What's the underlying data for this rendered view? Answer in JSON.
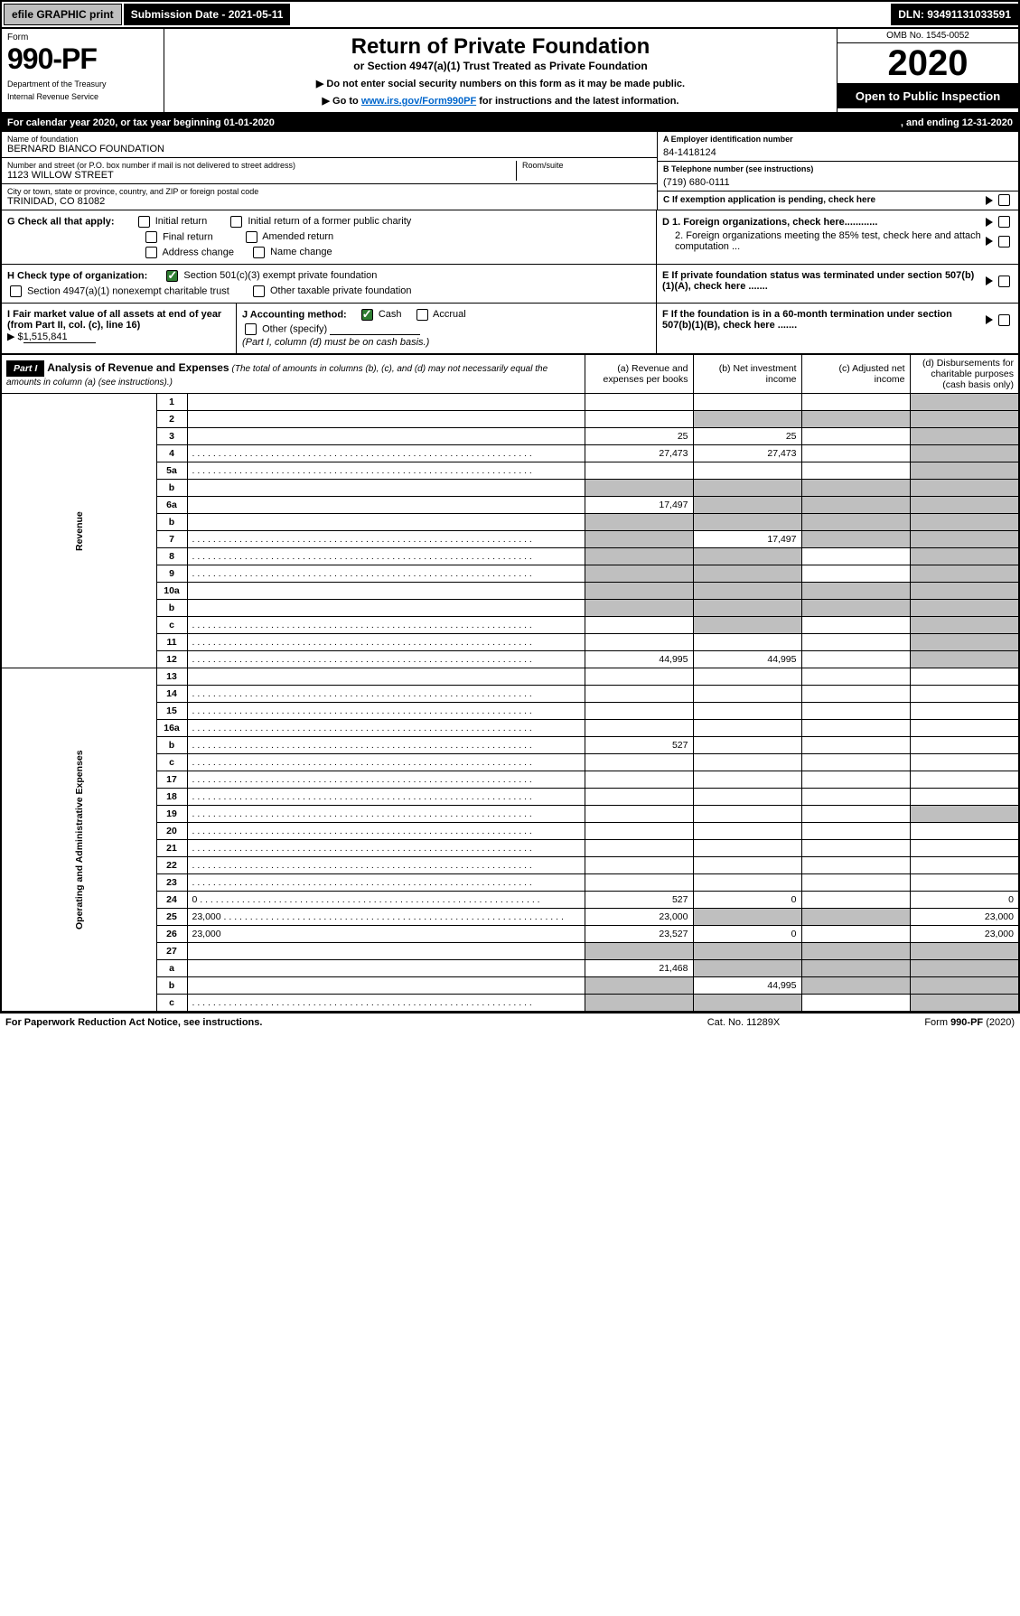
{
  "topbar": {
    "efile_btn": "efile GRAPHIC print",
    "submission_label": "Submission Date - 2021-05-11",
    "dln_label": "DLN: 93491131033591"
  },
  "header": {
    "form_word": "Form",
    "form_number": "990-PF",
    "dept1": "Department of the Treasury",
    "dept2": "Internal Revenue Service",
    "title": "Return of Private Foundation",
    "subtitle": "or Section 4947(a)(1) Trust Treated as Private Foundation",
    "instr1": "▶ Do not enter social security numbers on this form as it may be made public.",
    "instr2_pre": "▶ Go to ",
    "instr2_link": "www.irs.gov/Form990PF",
    "instr2_post": " for instructions and the latest information.",
    "omb": "OMB No. 1545-0052",
    "year": "2020",
    "open": "Open to Public Inspection"
  },
  "cal_year": {
    "text": "For calendar year 2020, or tax year beginning 01-01-2020",
    "ending": ", and ending 12-31-2020"
  },
  "entity": {
    "name_lbl": "Name of foundation",
    "name_val": "BERNARD BIANCO FOUNDATION",
    "addr_lbl": "Number and street (or P.O. box number if mail is not delivered to street address)",
    "addr_val": "1123 WILLOW STREET",
    "room_lbl": "Room/suite",
    "city_lbl": "City or town, state or province, country, and ZIP or foreign postal code",
    "city_val": "TRINIDAD, CO  81082",
    "ein_lbl": "A Employer identification number",
    "ein_val": "84-1418124",
    "phone_lbl": "B Telephone number (see instructions)",
    "phone_val": "(719) 680-0111",
    "c_lbl": "C If exemption application is pending, check here"
  },
  "section_g": {
    "lbl": "G Check all that apply:",
    "opts": [
      "Initial return",
      "Initial return of a former public charity",
      "Final return",
      "Amended return",
      "Address change",
      "Name change"
    ]
  },
  "section_h": {
    "lbl": "H Check type of organization:",
    "opt1": "Section 501(c)(3) exempt private foundation",
    "opt2": "Section 4947(a)(1) nonexempt charitable trust",
    "opt3": "Other taxable private foundation"
  },
  "section_i": {
    "lbl": "I Fair market value of all assets at end of year (from Part II, col. (c), line 16)",
    "amt_pre": "▶ $",
    "amt": "1,515,841"
  },
  "section_j": {
    "lbl": "J Accounting method:",
    "cash": "Cash",
    "accrual": "Accrual",
    "other": "Other (specify)",
    "note": "(Part I, column (d) must be on cash basis.)"
  },
  "section_d": {
    "d1": "D 1. Foreign organizations, check here............",
    "d2": "2. Foreign organizations meeting the 85% test, check here and attach computation ...",
    "e": "E If private foundation status was terminated under section 507(b)(1)(A), check here .......",
    "f": "F If the foundation is in a 60-month termination under section 507(b)(1)(B), check here ......."
  },
  "part1": {
    "hdr": "Part I",
    "title": "Analysis of Revenue and Expenses",
    "note": "(The total of amounts in columns (b), (c), and (d) may not necessarily equal the amounts in column (a) (see instructions).)",
    "col_a": "(a)   Revenue and expenses per books",
    "col_b": "(b)  Net investment income",
    "col_c": "(c)  Adjusted net income",
    "col_d": "(d)  Disbursements for charitable purposes (cash basis only)"
  },
  "side_rev": "Revenue",
  "side_exp": "Operating and Administrative Expenses",
  "rows": [
    {
      "n": "1",
      "d": "",
      "a": "",
      "b": "",
      "c": "",
      "ds": true,
      "dd": true
    },
    {
      "n": "2",
      "d": "",
      "a": "",
      "b": "",
      "c": "",
      "bs": true,
      "cs": true,
      "ds": true,
      "html": true
    },
    {
      "n": "3",
      "d": "",
      "a": "25",
      "b": "25",
      "c": "",
      "ds": true
    },
    {
      "n": "4",
      "d": "",
      "a": "27,473",
      "b": "27,473",
      "c": "",
      "ds": true,
      "dot": true
    },
    {
      "n": "5a",
      "d": "",
      "a": "",
      "b": "",
      "c": "",
      "ds": true,
      "dot": true
    },
    {
      "n": "b",
      "d": "",
      "a": "",
      "b": "",
      "c": "",
      "as": true,
      "bs": true,
      "cs": true,
      "ds": true
    },
    {
      "n": "6a",
      "d": "",
      "a": "17,497",
      "b": "",
      "c": "",
      "bs": true,
      "cs": true,
      "ds": true
    },
    {
      "n": "b",
      "d": "",
      "a": "",
      "b": "",
      "c": "",
      "as": true,
      "bs": true,
      "cs": true,
      "ds": true,
      "html": true
    },
    {
      "n": "7",
      "d": "",
      "a": "",
      "b": "17,497",
      "c": "",
      "as": true,
      "cs": true,
      "ds": true,
      "dot": true
    },
    {
      "n": "8",
      "d": "",
      "a": "",
      "b": "",
      "c": "",
      "as": true,
      "bs": true,
      "ds": true,
      "dot": true
    },
    {
      "n": "9",
      "d": "",
      "a": "",
      "b": "",
      "c": "",
      "as": true,
      "bs": true,
      "ds": true,
      "dot": true
    },
    {
      "n": "10a",
      "d": "",
      "a": "",
      "b": "",
      "c": "",
      "as": true,
      "bs": true,
      "cs": true,
      "ds": true
    },
    {
      "n": "b",
      "d": "",
      "a": "",
      "b": "",
      "c": "",
      "as": true,
      "bs": true,
      "cs": true,
      "ds": true
    },
    {
      "n": "c",
      "d": "",
      "a": "",
      "b": "",
      "c": "",
      "bs": true,
      "ds": true,
      "dot": true
    },
    {
      "n": "11",
      "d": "",
      "a": "",
      "b": "",
      "c": "",
      "ds": true,
      "dot": true
    },
    {
      "n": "12",
      "d": "",
      "a": "44,995",
      "b": "44,995",
      "c": "",
      "ds": true,
      "html": true,
      "dot": true
    },
    {
      "n": "13",
      "d": "",
      "a": "",
      "b": "",
      "c": ""
    },
    {
      "n": "14",
      "d": "",
      "a": "",
      "b": "",
      "c": "",
      "dot": true
    },
    {
      "n": "15",
      "d": "",
      "a": "",
      "b": "",
      "c": "",
      "dot": true
    },
    {
      "n": "16a",
      "d": "",
      "a": "",
      "b": "",
      "c": "",
      "dot": true
    },
    {
      "n": "b",
      "d": "",
      "a": "527",
      "b": "",
      "c": "",
      "dot": true
    },
    {
      "n": "c",
      "d": "",
      "a": "",
      "b": "",
      "c": "",
      "dot": true
    },
    {
      "n": "17",
      "d": "",
      "a": "",
      "b": "",
      "c": "",
      "dot": true
    },
    {
      "n": "18",
      "d": "",
      "a": "",
      "b": "",
      "c": "",
      "dot": true
    },
    {
      "n": "19",
      "d": "",
      "a": "",
      "b": "",
      "c": "",
      "ds": true,
      "dot": true
    },
    {
      "n": "20",
      "d": "",
      "a": "",
      "b": "",
      "c": "",
      "dot": true
    },
    {
      "n": "21",
      "d": "",
      "a": "",
      "b": "",
      "c": "",
      "dot": true
    },
    {
      "n": "22",
      "d": "",
      "a": "",
      "b": "",
      "c": "",
      "dot": true
    },
    {
      "n": "23",
      "d": "",
      "a": "",
      "b": "",
      "c": "",
      "dot": true
    },
    {
      "n": "24",
      "d": "0",
      "a": "527",
      "b": "0",
      "c": "",
      "html": true,
      "dot": true
    },
    {
      "n": "25",
      "d": "23,000",
      "a": "23,000",
      "b": "",
      "c": "",
      "bs": true,
      "cs": true,
      "dot": true
    },
    {
      "n": "26",
      "d": "23,000",
      "a": "23,527",
      "b": "0",
      "c": "",
      "html": true
    },
    {
      "n": "27",
      "d": "",
      "a": "",
      "b": "",
      "c": "",
      "as": true,
      "bs": true,
      "cs": true,
      "ds": true
    },
    {
      "n": "a",
      "d": "",
      "a": "21,468",
      "b": "",
      "c": "",
      "bs": true,
      "cs": true,
      "ds": true,
      "html": true
    },
    {
      "n": "b",
      "d": "",
      "a": "",
      "b": "44,995",
      "c": "",
      "as": true,
      "cs": true,
      "ds": true,
      "html": true
    },
    {
      "n": "c",
      "d": "",
      "a": "",
      "b": "",
      "c": "",
      "as": true,
      "bs": true,
      "ds": true,
      "html": true,
      "dot": true
    }
  ],
  "footer": {
    "l": "For Paperwork Reduction Act Notice, see instructions.",
    "m": "Cat. No. 11289X",
    "r": "Form 990-PF (2020)"
  }
}
